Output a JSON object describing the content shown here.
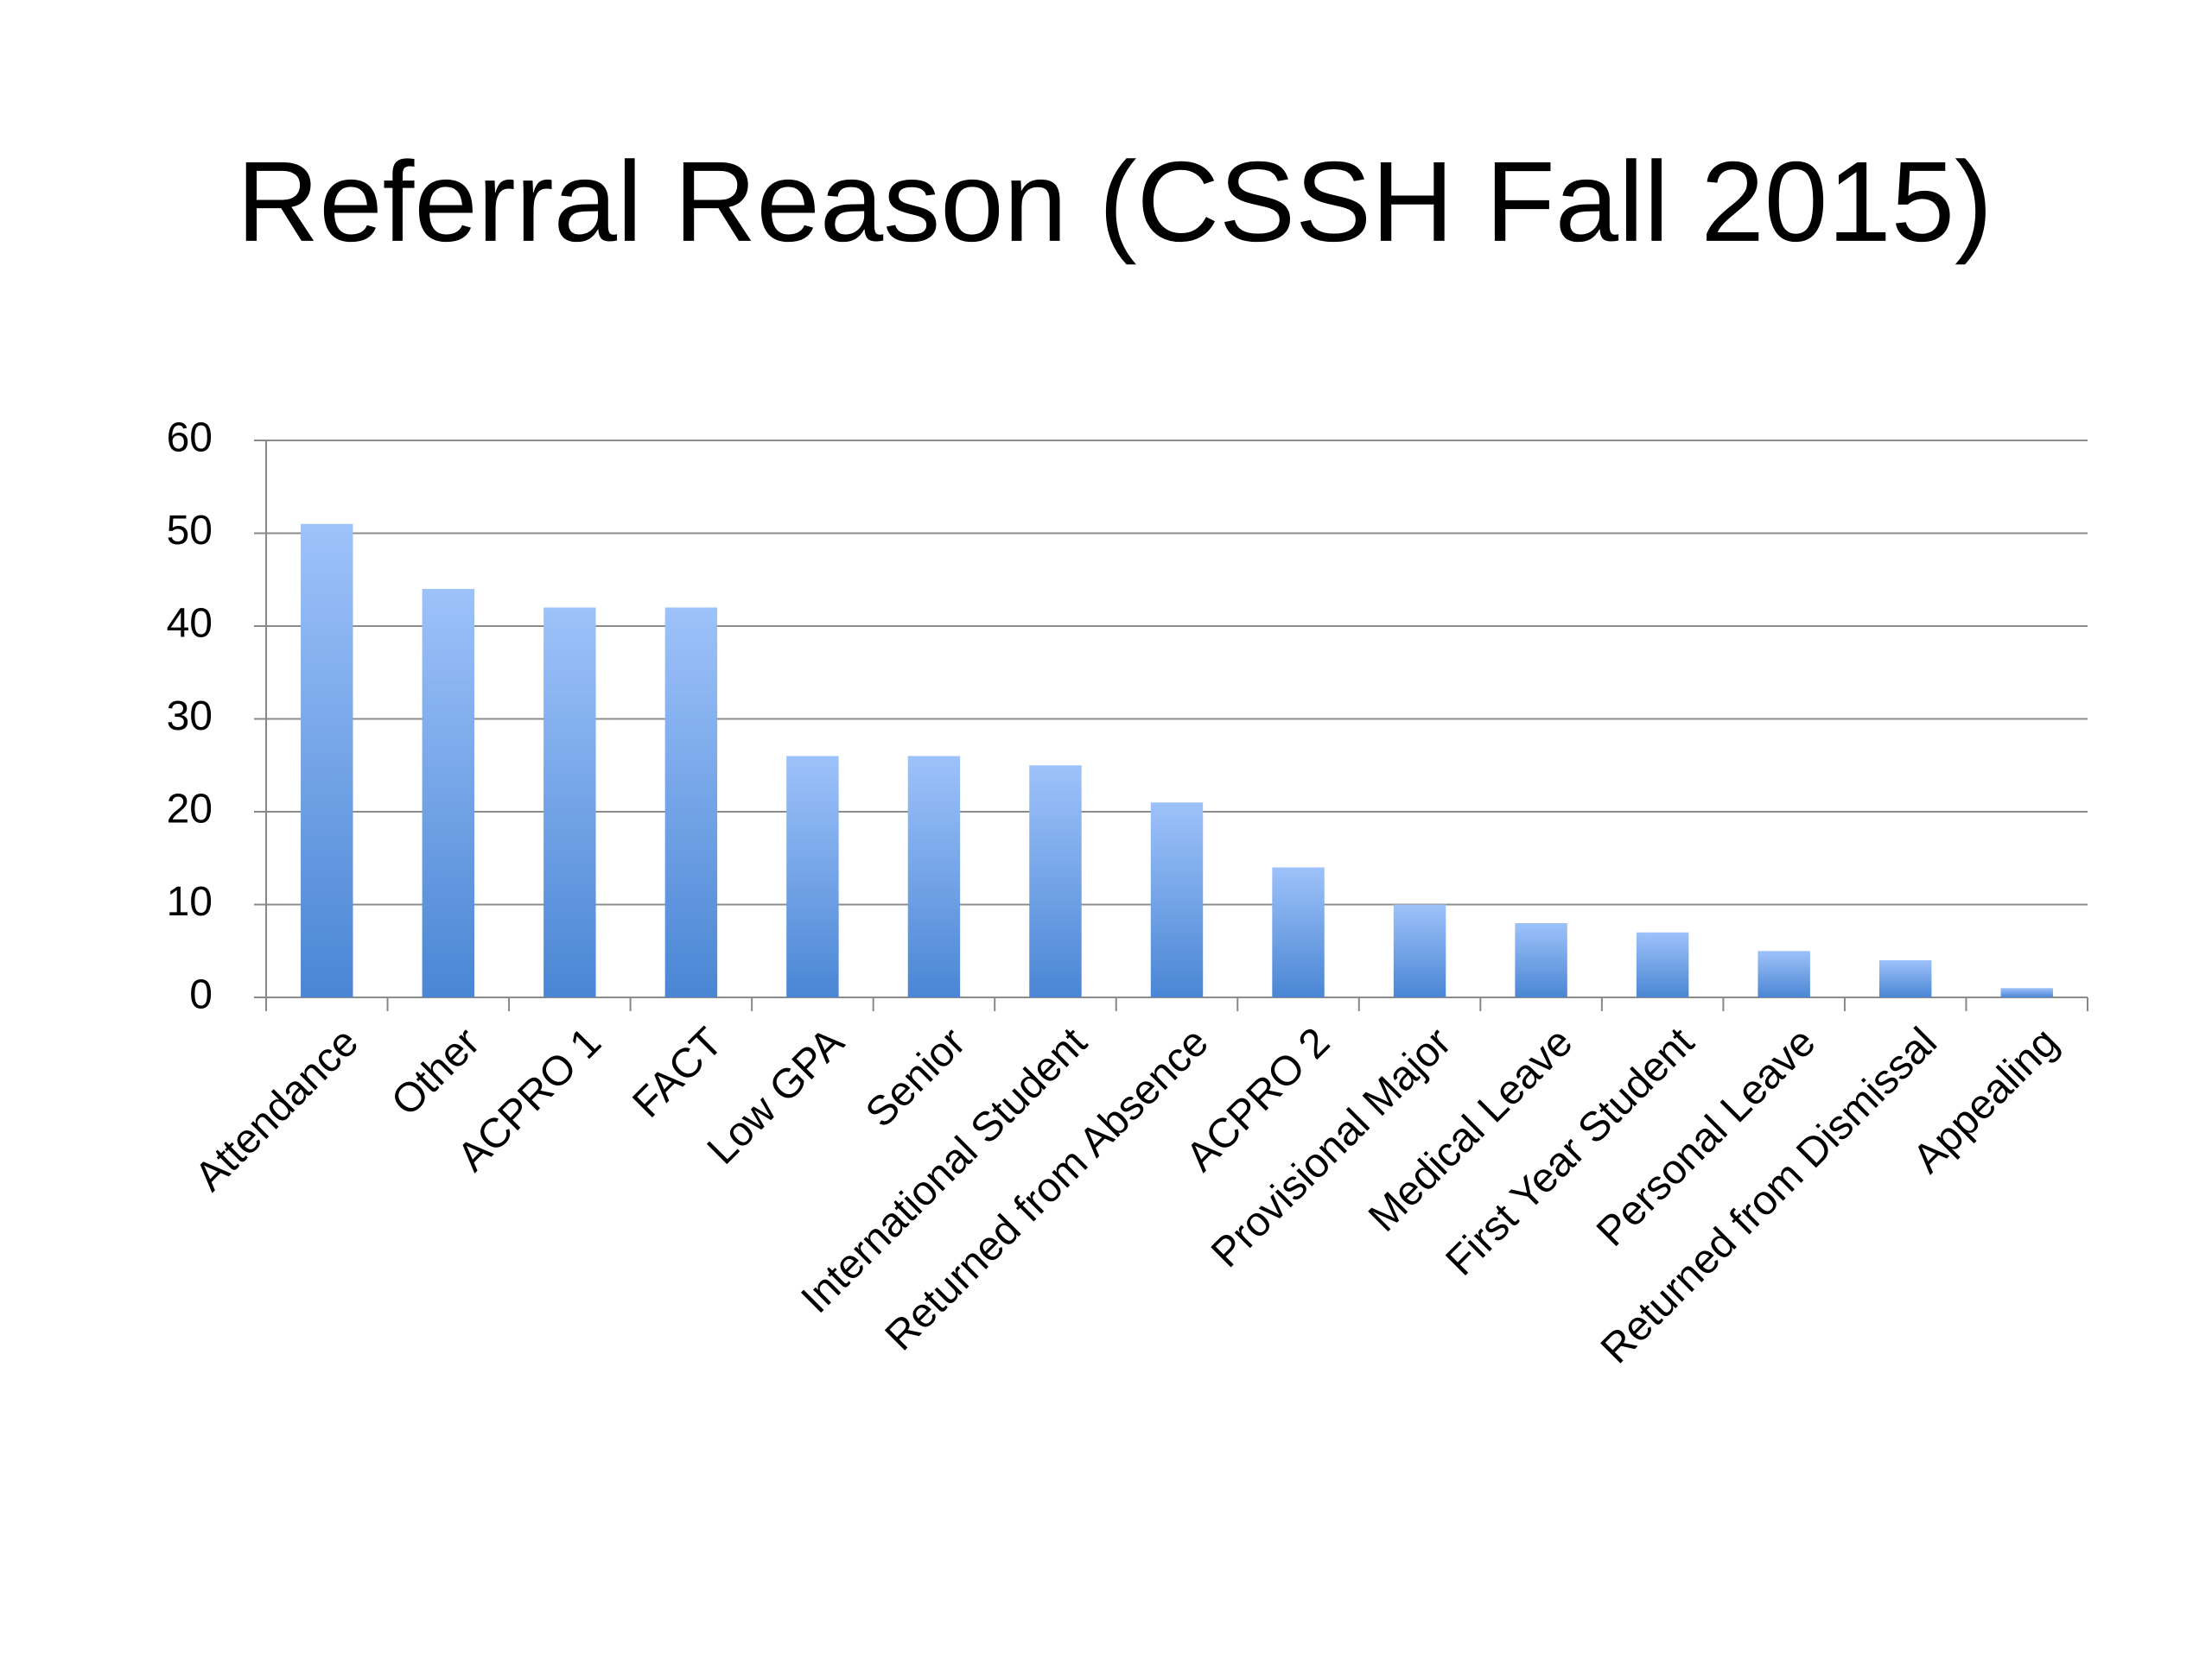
{
  "chart_data": {
    "type": "bar",
    "title": "Referral Reason (CSSH Fall 2015)",
    "categories": [
      "Attendance",
      "Other",
      "ACPRO 1",
      "FACT",
      "Low GPA",
      "Senior",
      "International Student",
      "Returned from Absence",
      "ACPRO 2",
      "Provisional Major",
      "Medical Leave",
      "First Year Student",
      "Personal Leave",
      "Returned from Dismissal",
      "Appealing"
    ],
    "values": [
      51,
      44,
      42,
      42,
      26,
      26,
      25,
      21,
      14,
      10,
      8,
      7,
      5,
      4,
      1
    ],
    "color": "#4a86d4",
    "ylim": [
      0,
      60
    ],
    "yticks": [
      0,
      10,
      20,
      30,
      40,
      50,
      60
    ],
    "grid": true
  }
}
